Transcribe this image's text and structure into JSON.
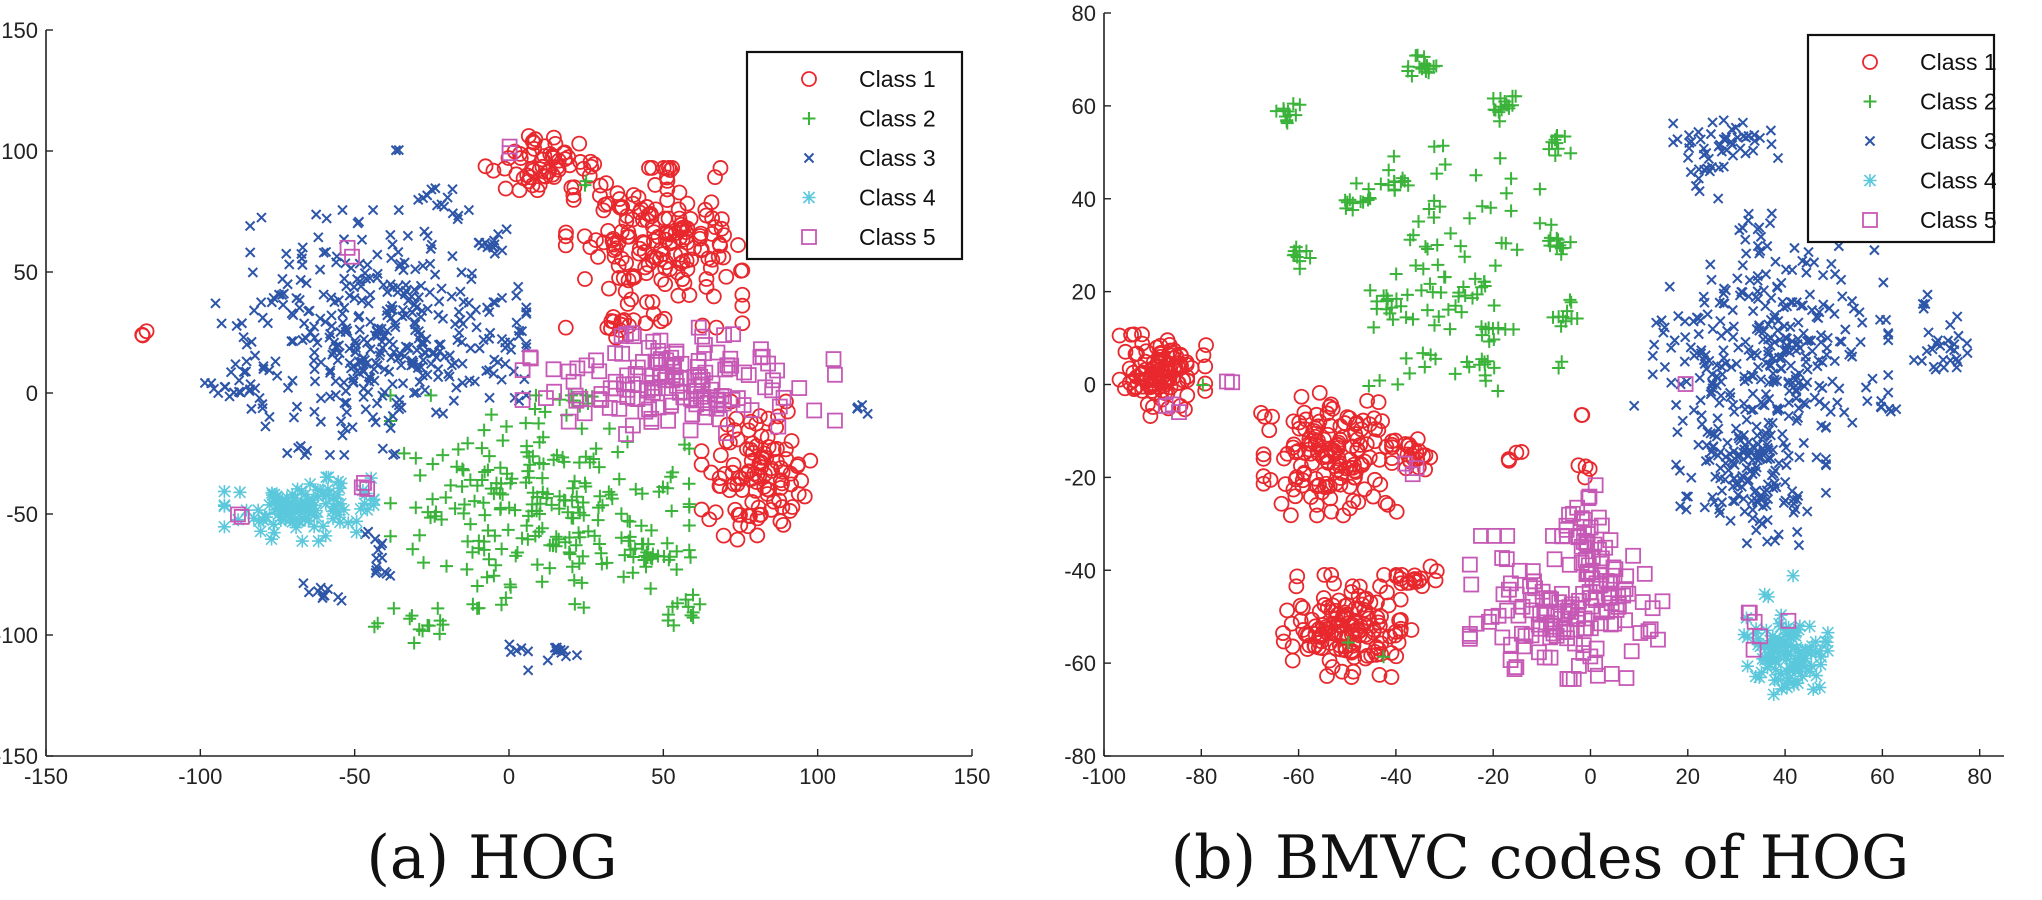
{
  "chart_data": [
    {
      "type": "scatter",
      "caption": "(a) HOG",
      "xlim": [
        -150,
        150
      ],
      "ylim": [
        -150,
        150
      ],
      "xticks": [
        -150,
        -100,
        -50,
        0,
        50,
        100,
        150
      ],
      "yticks": [
        -150,
        -100,
        -50,
        0,
        50,
        100,
        150
      ],
      "legend_position": "top-right",
      "series": [
        {
          "name": "Class 1",
          "marker": "circle",
          "color": "#e8282d",
          "clusters": [
            {
              "center": [
                47,
                60
              ],
              "spread": [
                13,
                15
              ],
              "count": 180
            },
            {
              "center": [
                10,
                93
              ],
              "spread": [
                8,
                6
              ],
              "count": 60
            },
            {
              "center": [
                80,
                -32
              ],
              "spread": [
                8,
                13
              ],
              "count": 110
            },
            {
              "center": [
                -118,
                25
              ],
              "spread": [
                0.6,
                0.6
              ],
              "count": 3
            },
            {
              "center": [
                37,
                29
              ],
              "spread": [
                4,
                5
              ],
              "count": 12
            }
          ]
        },
        {
          "name": "Class 2",
          "marker": "plus",
          "color": "#3bb33b",
          "clusters": [
            {
              "center": [
                10,
                -45
              ],
              "spread": [
                22,
                20
              ],
              "count": 230
            },
            {
              "center": [
                48,
                -65
              ],
              "spread": [
                6,
                4
              ],
              "count": 20
            },
            {
              "center": [
                57,
                -90
              ],
              "spread": [
                4,
                3
              ],
              "count": 12
            },
            {
              "center": [
                -28,
                -97
              ],
              "spread": [
                3,
                3
              ],
              "count": 10
            },
            {
              "center": [
                -43,
                -95
              ],
              "spread": [
                1,
                1
              ],
              "count": 2
            },
            {
              "center": [
                25,
                87
              ],
              "spread": [
                1,
                1
              ],
              "count": 2
            }
          ]
        },
        {
          "name": "Class 3",
          "marker": "x",
          "color": "#2d55a8",
          "clusters": [
            {
              "center": [
                -45,
                25
              ],
              "spread": [
                23,
                23
              ],
              "count": 380
            },
            {
              "center": [
                -88,
                2
              ],
              "spread": [
                5,
                3
              ],
              "count": 18
            },
            {
              "center": [
                -60,
                -83
              ],
              "spread": [
                3,
                2
              ],
              "count": 10
            },
            {
              "center": [
                -40,
                -68
              ],
              "spread": [
                3,
                6
              ],
              "count": 14
            },
            {
              "center": [
                -23,
                78
              ],
              "spread": [
                3,
                3
              ],
              "count": 12
            },
            {
              "center": [
                -5,
                62
              ],
              "spread": [
                3,
                2
              ],
              "count": 10
            },
            {
              "center": [
                15,
                -108
              ],
              "spread": [
                4,
                3
              ],
              "count": 12
            },
            {
              "center": [
                2,
                -106
              ],
              "spread": [
                2,
                1
              ],
              "count": 5
            },
            {
              "center": [
                113,
                -6
              ],
              "spread": [
                1.5,
                1.5
              ],
              "count": 5
            },
            {
              "center": [
                -36,
                99
              ],
              "spread": [
                1,
                1
              ],
              "count": 2
            },
            {
              "center": [
                0,
                20
              ],
              "spread": [
                6,
                10
              ],
              "count": 25
            }
          ]
        },
        {
          "name": "Class 4",
          "marker": "star",
          "color": "#5bc8dc",
          "clusters": [
            {
              "center": [
                -68,
                -48
              ],
              "spread": [
                11,
                6
              ],
              "count": 120
            }
          ]
        },
        {
          "name": "Class 5",
          "marker": "square",
          "color": "#c659b5",
          "clusters": [
            {
              "center": [
                55,
                5
              ],
              "spread": [
                23,
                10
              ],
              "count": 150
            },
            {
              "center": [
                -87,
                -49
              ],
              "spread": [
                1,
                1
              ],
              "count": 2
            },
            {
              "center": [
                -47,
                -39
              ],
              "spread": [
                1,
                1
              ],
              "count": 3
            },
            {
              "center": [
                -52,
                58
              ],
              "spread": [
                1,
                1
              ],
              "count": 2
            },
            {
              "center": [
                -2,
                100
              ],
              "spread": [
                1,
                1
              ],
              "count": 2
            },
            {
              "center": [
                7,
                14
              ],
              "spread": [
                1,
                1
              ],
              "count": 2
            },
            {
              "center": [
                40,
                24
              ],
              "spread": [
                1,
                1
              ],
              "count": 2
            }
          ]
        }
      ]
    },
    {
      "type": "scatter",
      "caption": "(b) BMVC codes of HOG",
      "xlim": [
        -100,
        85
      ],
      "ylim": [
        -80,
        80
      ],
      "xticks": [
        -100,
        -80,
        -60,
        -40,
        -20,
        0,
        20,
        40,
        60,
        80
      ],
      "yticks": [
        -80,
        -60,
        -40,
        -20,
        0,
        20,
        40,
        60,
        80
      ],
      "legend_position": "top-right",
      "series": [
        {
          "name": "Class 1",
          "marker": "circle",
          "color": "#e8282d",
          "clusters": [
            {
              "center": [
                -88,
                2
              ],
              "spread": [
                4,
                4
              ],
              "count": 110
            },
            {
              "center": [
                -54,
                -15
              ],
              "spread": [
                6,
                6
              ],
              "count": 150
            },
            {
              "center": [
                -50,
                -52
              ],
              "spread": [
                6,
                5
              ],
              "count": 150
            },
            {
              "center": [
                -36,
                -15
              ],
              "spread": [
                2,
                2
              ],
              "count": 20
            },
            {
              "center": [
                -36,
                -42
              ],
              "spread": [
                2,
                1.5
              ],
              "count": 15
            },
            {
              "center": [
                -16,
                -16
              ],
              "spread": [
                1,
                1
              ],
              "count": 4
            },
            {
              "center": [
                -2,
                -7
              ],
              "spread": [
                0.5,
                0.5
              ],
              "count": 2
            },
            {
              "center": [
                -1,
                -19
              ],
              "spread": [
                1,
                1.5
              ],
              "count": 4
            },
            {
              "center": [
                -67,
                -5
              ],
              "spread": [
                1,
                1
              ],
              "count": 2
            },
            {
              "center": [
                -80,
                8
              ],
              "spread": [
                1,
                1
              ],
              "count": 2
            },
            {
              "center": [
                -40,
                -26
              ],
              "spread": [
                1,
                1
              ],
              "count": 2
            }
          ]
        },
        {
          "name": "Class 2",
          "marker": "plus",
          "color": "#3bb33b",
          "clusters": [
            {
              "center": [
                -28,
                25
              ],
              "spread": [
                8,
                12
              ],
              "count": 90
            },
            {
              "center": [
                -35,
                69
              ],
              "spread": [
                1.5,
                1.5
              ],
              "count": 15
            },
            {
              "center": [
                -17,
                60
              ],
              "spread": [
                1.5,
                1.5
              ],
              "count": 15
            },
            {
              "center": [
                -62,
                58
              ],
              "spread": [
                1.5,
                1.5
              ],
              "count": 12
            },
            {
              "center": [
                -49,
                40
              ],
              "spread": [
                2,
                1.5
              ],
              "count": 12
            },
            {
              "center": [
                -40,
                43
              ],
              "spread": [
                1.5,
                1.5
              ],
              "count": 10
            },
            {
              "center": [
                -60,
                28
              ],
              "spread": [
                1.5,
                1.5
              ],
              "count": 10
            },
            {
              "center": [
                -7,
                30
              ],
              "spread": [
                1.5,
                2
              ],
              "count": 12
            },
            {
              "center": [
                -6,
                52
              ],
              "spread": [
                1.5,
                1.5
              ],
              "count": 10
            },
            {
              "center": [
                -5,
                15
              ],
              "spread": [
                1.5,
                1.5
              ],
              "count": 10
            },
            {
              "center": [
                -43,
                18
              ],
              "spread": [
                2,
                2
              ],
              "count": 12
            },
            {
              "center": [
                -21,
                6
              ],
              "spread": [
                2,
                2
              ],
              "count": 10
            },
            {
              "center": [
                -6,
                3
              ],
              "spread": [
                1,
                1
              ],
              "count": 2
            },
            {
              "center": [
                -79,
                1
              ],
              "spread": [
                0.5,
                0.5
              ],
              "count": 1
            },
            {
              "center": [
                -49,
                -56
              ],
              "spread": [
                0.5,
                0.5
              ],
              "count": 1
            },
            {
              "center": [
                -43,
                -59
              ],
              "spread": [
                0.5,
                0.5
              ],
              "count": 1
            }
          ]
        },
        {
          "name": "Class 3",
          "marker": "x",
          "color": "#2d55a8",
          "clusters": [
            {
              "center": [
                37,
                10
              ],
              "spread": [
                11,
                9
              ],
              "count": 260
            },
            {
              "center": [
                33,
                -17
              ],
              "spread": [
                7,
                8
              ],
              "count": 190
            },
            {
              "center": [
                28,
                53
              ],
              "spread": [
                5,
                2
              ],
              "count": 40
            },
            {
              "center": [
                23,
                45
              ],
              "spread": [
                2,
                3
              ],
              "count": 15
            },
            {
              "center": [
                72,
                9
              ],
              "spread": [
                3,
                3
              ],
              "count": 25
            },
            {
              "center": [
                69,
                18
              ],
              "spread": [
                1,
                1
              ],
              "count": 4
            },
            {
              "center": [
                61,
                -5
              ],
              "spread": [
                1.5,
                1
              ],
              "count": 6
            },
            {
              "center": [
                35,
                34
              ],
              "spread": [
                2,
                3
              ],
              "count": 12
            },
            {
              "center": [
                9,
                -5
              ],
              "spread": [
                0.5,
                0.5
              ],
              "count": 1
            }
          ]
        },
        {
          "name": "Class 4",
          "marker": "star",
          "color": "#5bc8dc",
          "clusters": [
            {
              "center": [
                40,
                -58
              ],
              "spread": [
                4,
                4
              ],
              "count": 110
            },
            {
              "center": [
                42,
                -41
              ],
              "spread": [
                0.5,
                0.5
              ],
              "count": 1
            },
            {
              "center": [
                37,
                -45
              ],
              "spread": [
                1,
                1
              ],
              "count": 2
            }
          ]
        },
        {
          "name": "Class 5",
          "marker": "square",
          "color": "#c659b5",
          "clusters": [
            {
              "center": [
                -5,
                -48
              ],
              "spread": [
                9,
                7
              ],
              "count": 150
            },
            {
              "center": [
                -1,
                -32
              ],
              "spread": [
                3,
                5
              ],
              "count": 30
            },
            {
              "center": [
                -86,
                -5
              ],
              "spread": [
                1,
                1
              ],
              "count": 3
            },
            {
              "center": [
                -74,
                0
              ],
              "spread": [
                0.5,
                0.5
              ],
              "count": 2
            },
            {
              "center": [
                -37,
                -18
              ],
              "spread": [
                1,
                1
              ],
              "count": 3
            },
            {
              "center": [
                20,
                0
              ],
              "spread": [
                0.5,
                0.5
              ],
              "count": 1
            },
            {
              "center": [
                34,
                -52
              ],
              "spread": [
                1,
                3
              ],
              "count": 5
            },
            {
              "center": [
                41,
                -51
              ],
              "spread": [
                0.5,
                0.5
              ],
              "count": 1
            }
          ]
        }
      ]
    }
  ]
}
